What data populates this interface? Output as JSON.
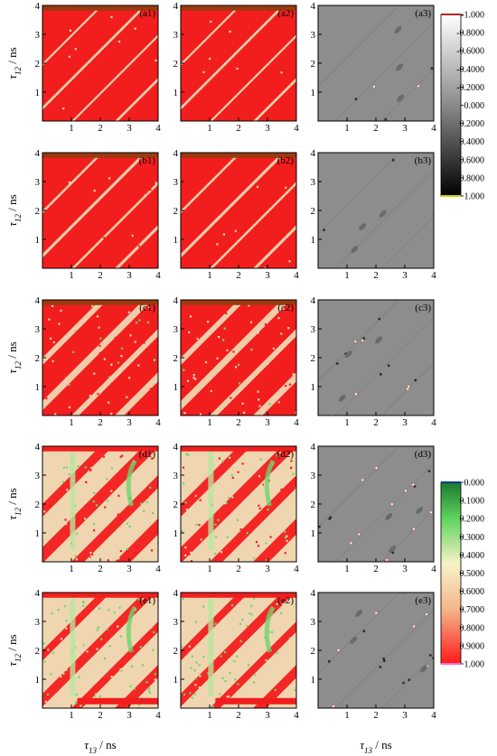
{
  "figure": {
    "y_label_main": "τ",
    "y_label_sub": "12",
    "y_label_unit": " / ns",
    "x_label_main": "τ",
    "x_label_sub": "13",
    "x_label_unit": " / ns"
  },
  "chart_data": {
    "type": "heatmap",
    "rows": [
      "a",
      "b",
      "c",
      "d",
      "e"
    ],
    "columns": [
      "1",
      "2",
      "3"
    ],
    "panel_labels": [
      [
        "(a1)",
        "(a2)",
        "(a3)"
      ],
      [
        "(b1)",
        "(b2)",
        "(b3)"
      ],
      [
        "(c1)",
        "(c2)",
        "(c3)"
      ],
      [
        "(d1)",
        "(d2)",
        "(d3)"
      ],
      [
        "(e1)",
        "(e2)",
        "(e3)"
      ]
    ],
    "x_ticks": [
      "1",
      "2",
      "3",
      "4"
    ],
    "y_ticks": [
      "1",
      "2",
      "3",
      "4"
    ],
    "xlim": [
      0,
      4
    ],
    "ylim": [
      0,
      4
    ],
    "xlabel": "τ13 / ns",
    "ylabel": "τ12 / ns",
    "colorbar_difference": {
      "ticks": [
        "-1.000",
        "-0.8000",
        "-0.6000",
        "-0.4000",
        "-0.2000",
        "0.000",
        "0.2000",
        "0.4000",
        "0.6000",
        "0.8000",
        "1.000"
      ],
      "colors": {
        "top": "#ffffff",
        "bottom": "#000000",
        "mid": "#888888",
        "top_edge": "#b3261e",
        "bottom_edge": "#d4d400"
      }
    },
    "colorbar_value": {
      "ticks": [
        "0.000",
        "0.1000",
        "0.2000",
        "0.3000",
        "0.4000",
        "0.5000",
        "0.6000",
        "0.7000",
        "0.8000",
        "0.9000",
        "1.000"
      ],
      "colors": {
        "low": "#1b7a2e",
        "mid": "#f5f0c0",
        "high": "#ff1a1a",
        "low_edge": "#0b3d91",
        "high_edge": "#ff66cc"
      }
    },
    "panel_colors": {
      "red": "#f21e1e",
      "dark_strip": "#9a3a10",
      "cream": "#f0d6b0",
      "pale_green": "#b8e6a0",
      "green": "#6fd46f",
      "gray": "#8d8d8d"
    },
    "pattern_description_rows": {
      "a": "mostly red, thin diagonal bands",
      "b": "mostly red, thin diagonal bands",
      "c": "red with wider diagonal bands",
      "d": "mixed red and cream with broad bands",
      "e": "cream/green dominant with red diagonal bands"
    }
  }
}
